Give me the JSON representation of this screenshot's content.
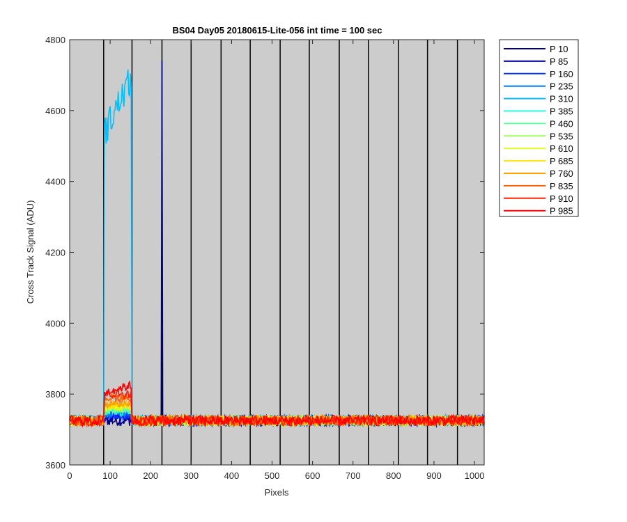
{
  "chart_data": {
    "type": "line",
    "title": "BS04 Day05 20180615-Lite-056 int time = 100 sec",
    "xlabel": "Pixels",
    "ylabel": "Cross Track Signal (ADU)",
    "xlim": [
      0,
      1024
    ],
    "ylim": [
      3600,
      4800
    ],
    "xticks": [
      0,
      100,
      200,
      300,
      400,
      500,
      600,
      700,
      800,
      900,
      1000
    ],
    "yticks": [
      3600,
      3800,
      4000,
      4200,
      4400,
      4600,
      4800
    ],
    "grid": false,
    "background": "#cccccc",
    "segment_boundaries": [
      84,
      154,
      228,
      300,
      374,
      446,
      520,
      592,
      666,
      738,
      812,
      884,
      958
    ],
    "legend_position": "outside-right",
    "baseline_signal": 3725,
    "noise_amplitude": 30,
    "series": [
      {
        "name": "P 10",
        "color": "#00008f",
        "features": [
          {
            "x_start": 227,
            "x_end": 229,
            "peak": 4740
          }
        ]
      },
      {
        "name": "P 85",
        "color": "#0000df",
        "features": [
          {
            "x_start": 86,
            "x_end": 152,
            "level": 3735
          }
        ]
      },
      {
        "name": "P 160",
        "color": "#0030ff",
        "features": [
          {
            "x_start": 86,
            "x_end": 152,
            "level": 3740
          }
        ]
      },
      {
        "name": "P 235",
        "color": "#0080ff",
        "features": [
          {
            "x_start": 86,
            "x_end": 152,
            "level": 3745
          }
        ]
      },
      {
        "name": "P 310",
        "color": "#00c0ff",
        "features": [
          {
            "x_start": 86,
            "x_end": 152,
            "level_start": 4540,
            "level_end": 4690
          }
        ]
      },
      {
        "name": "P 385",
        "color": "#20ffdf",
        "features": [
          {
            "x_start": 86,
            "x_end": 152,
            "level": 3750
          }
        ]
      },
      {
        "name": "P 460",
        "color": "#60ffa0",
        "features": [
          {
            "x_start": 86,
            "x_end": 152,
            "level": 3755
          }
        ]
      },
      {
        "name": "P 535",
        "color": "#a0ff60",
        "features": [
          {
            "x_start": 86,
            "x_end": 152,
            "level": 3760
          }
        ]
      },
      {
        "name": "P 610",
        "color": "#dfff20",
        "features": [
          {
            "x_start": 86,
            "x_end": 152,
            "level": 3765
          }
        ]
      },
      {
        "name": "P 685",
        "color": "#ffdf00",
        "features": [
          {
            "x_start": 86,
            "x_end": 152,
            "level": 3770
          }
        ]
      },
      {
        "name": "P 760",
        "color": "#ffa000",
        "features": [
          {
            "x_start": 86,
            "x_end": 152,
            "level": 3775
          }
        ]
      },
      {
        "name": "P 835",
        "color": "#ff6000",
        "features": [
          {
            "x_start": 86,
            "x_end": 152,
            "level": 3790
          }
        ]
      },
      {
        "name": "P 910",
        "color": "#ff2000",
        "features": [
          {
            "x_start": 86,
            "x_end": 152,
            "level": 3800
          }
        ]
      },
      {
        "name": "P 985",
        "color": "#ff0000",
        "features": [
          {
            "x_start": 86,
            "x_end": 152,
            "level_start": 3805,
            "level_end": 3825
          }
        ]
      }
    ]
  }
}
